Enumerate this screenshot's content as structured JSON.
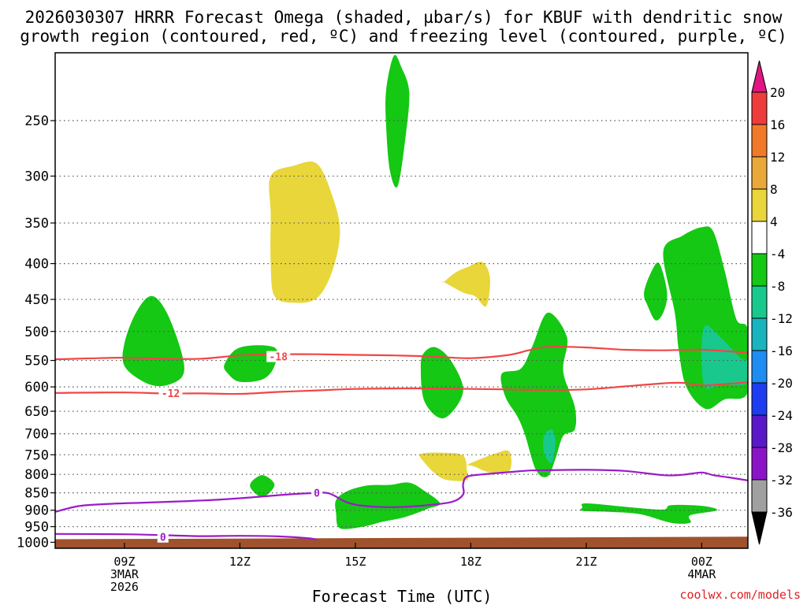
{
  "chart_data": {
    "type": "cross-section",
    "title_line1": "2026030307 HRRR Forecast Omega (shaded, µbar/s) for KBUF with dendritic snow",
    "title_line2": "growth region (contoured, red, ºC) and freezing level (contoured, purple, ºC)",
    "xlabel": "Forecast Time (UTC)",
    "ylabel": "",
    "watermark": "coolwx.com/models",
    "x_axis": {
      "unit": "hours since 2026-03-03 00Z",
      "range": [
        7.2,
        25.2
      ],
      "ticks": [
        {
          "hour": 9,
          "lines": [
            "09Z",
            "3MAR",
            "2026"
          ]
        },
        {
          "hour": 12,
          "lines": [
            "12Z"
          ]
        },
        {
          "hour": 15,
          "lines": [
            "15Z"
          ]
        },
        {
          "hour": 18,
          "lines": [
            "18Z"
          ]
        },
        {
          "hour": 21,
          "lines": [
            "21Z"
          ]
        },
        {
          "hour": 24,
          "lines": [
            "00Z",
            "4MAR"
          ]
        }
      ]
    },
    "y_axis": {
      "unit": "hPa",
      "scale": "log",
      "range_top": 200,
      "range_bottom": 1020,
      "ticks": [
        250,
        300,
        350,
        400,
        450,
        500,
        550,
        600,
        650,
        700,
        750,
        800,
        850,
        900,
        950,
        1000
      ]
    },
    "colorbar": {
      "labels": [
        "20",
        "16",
        "12",
        "8",
        "4",
        "-4",
        "-8",
        "-12",
        "-16",
        "-20",
        "-24",
        "-28",
        "-32",
        "-36"
      ],
      "colors": [
        "#ee3c3c",
        "#f07a2a",
        "#e8a93a",
        "#e8d63a",
        "#ffffff",
        "#14c814",
        "#18c88c",
        "#19b4be",
        "#1e8cf0",
        "#1e3cf0",
        "#5a19c8",
        "#8c14c8",
        "#a0a0a0"
      ],
      "top_arrow_color": "#e01682",
      "bottom_arrow_color": "#000000"
    },
    "omega_regions": [
      {
        "name": "yellow-250-450",
        "color": "#e8d63a",
        "points": [
          [
            12.8,
            300
          ],
          [
            13.4,
            290
          ],
          [
            14.0,
            288
          ],
          [
            14.4,
            320
          ],
          [
            14.6,
            360
          ],
          [
            14.4,
            410
          ],
          [
            14.0,
            448
          ],
          [
            13.4,
            455
          ],
          [
            12.9,
            445
          ],
          [
            12.8,
            400
          ],
          [
            12.8,
            340
          ]
        ]
      },
      {
        "name": "yellow-400-460",
        "color": "#e8d63a",
        "points": [
          [
            17.3,
            425
          ],
          [
            17.6,
            412
          ],
          [
            17.9,
            405
          ],
          [
            18.3,
            398
          ],
          [
            18.5,
            420
          ],
          [
            18.4,
            460
          ],
          [
            18.1,
            445
          ],
          [
            17.8,
            440
          ],
          [
            17.3,
            425
          ]
        ]
      },
      {
        "name": "yellow-750-800",
        "color": "#e8d63a",
        "points": [
          [
            16.7,
            748
          ],
          [
            17.3,
            745
          ],
          [
            17.8,
            752
          ],
          [
            17.9,
            790
          ],
          [
            17.9,
            815
          ],
          [
            17.4,
            815
          ],
          [
            17.1,
            800
          ],
          [
            16.8,
            770
          ]
        ]
      },
      {
        "name": "yellow-760-790",
        "color": "#e8d63a",
        "points": [
          [
            17.9,
            775
          ],
          [
            18.6,
            748
          ],
          [
            19.0,
            742
          ],
          [
            19.0,
            792
          ],
          [
            18.5,
            795
          ],
          [
            18.1,
            780
          ],
          [
            17.9,
            775
          ]
        ]
      },
      {
        "name": "green-200-300",
        "color": "#14c814",
        "points": [
          [
            15.8,
            226
          ],
          [
            16.0,
            202
          ],
          [
            16.2,
            210
          ],
          [
            16.4,
            228
          ],
          [
            16.3,
            265
          ],
          [
            16.1,
            310
          ],
          [
            15.9,
            295
          ],
          [
            15.8,
            255
          ]
        ]
      },
      {
        "name": "green-470-590",
        "color": "#14c814",
        "points": [
          [
            9.0,
            520
          ],
          [
            9.3,
            470
          ],
          [
            9.7,
            445
          ],
          [
            10.1,
            470
          ],
          [
            10.5,
            540
          ],
          [
            10.5,
            580
          ],
          [
            10.0,
            598
          ],
          [
            9.5,
            590
          ],
          [
            9.0,
            560
          ]
        ]
      },
      {
        "name": "green-530-590",
        "color": "#14c814",
        "points": [
          [
            11.6,
            557
          ],
          [
            12.0,
            527
          ],
          [
            12.9,
            527
          ],
          [
            12.9,
            560
          ],
          [
            12.6,
            585
          ],
          [
            12.0,
            590
          ],
          [
            11.7,
            575
          ]
        ]
      },
      {
        "name": "green-535-660",
        "color": "#14c814",
        "points": [
          [
            16.7,
            560
          ],
          [
            16.8,
            535
          ],
          [
            17.1,
            527
          ],
          [
            17.5,
            552
          ],
          [
            17.8,
            610
          ],
          [
            17.3,
            665
          ],
          [
            16.8,
            630
          ]
        ]
      },
      {
        "name": "green-470-810",
        "color": "#14c814",
        "points": [
          [
            18.8,
            575
          ],
          [
            19.3,
            565
          ],
          [
            19.6,
            525
          ],
          [
            20.0,
            470
          ],
          [
            20.5,
            510
          ],
          [
            20.4,
            570
          ],
          [
            20.7,
            640
          ],
          [
            20.7,
            690
          ],
          [
            20.4,
            705
          ],
          [
            20.2,
            760
          ],
          [
            20.0,
            805
          ],
          [
            19.7,
            790
          ],
          [
            19.4,
            700
          ],
          [
            19.2,
            660
          ],
          [
            18.9,
            620
          ]
        ]
      },
      {
        "name": "green-410-480",
        "color": "#14c814",
        "points": [
          [
            22.5,
            440
          ],
          [
            22.7,
            410
          ],
          [
            22.9,
            400
          ],
          [
            23.1,
            440
          ],
          [
            23.0,
            470
          ],
          [
            22.8,
            482
          ],
          [
            22.6,
            460
          ]
        ]
      },
      {
        "name": "green-350-640",
        "color": "#14c814",
        "points": [
          [
            23.5,
            365
          ],
          [
            24.0,
            355
          ],
          [
            24.3,
            360
          ],
          [
            24.6,
            410
          ],
          [
            24.9,
            480
          ],
          [
            25.2,
            498
          ],
          [
            25.2,
            610
          ],
          [
            24.6,
            625
          ],
          [
            24.1,
            645
          ],
          [
            23.6,
            600
          ],
          [
            23.4,
            530
          ],
          [
            23.3,
            470
          ],
          [
            23.0,
            385
          ]
        ]
      },
      {
        "name": "green-810-870",
        "color": "#14c814",
        "points": [
          [
            12.3,
            820
          ],
          [
            12.6,
            802
          ],
          [
            12.9,
            828
          ],
          [
            12.6,
            862
          ],
          [
            12.3,
            840
          ]
        ]
      },
      {
        "name": "green-820-960",
        "color": "#14c814",
        "points": [
          [
            14.5,
            870
          ],
          [
            14.8,
            845
          ],
          [
            15.3,
            830
          ],
          [
            15.9,
            828
          ],
          [
            16.4,
            822
          ],
          [
            16.8,
            845
          ],
          [
            17.2,
            880
          ],
          [
            16.9,
            895
          ],
          [
            16.3,
            920
          ],
          [
            15.7,
            935
          ],
          [
            15.2,
            950
          ],
          [
            14.6,
            955
          ],
          [
            14.5,
            910
          ]
        ]
      },
      {
        "name": "green-880-935",
        "color": "#14c814",
        "points": [
          [
            20.9,
            892
          ],
          [
            21.0,
            880
          ],
          [
            22.2,
            892
          ],
          [
            23.0,
            898
          ],
          [
            23.2,
            885
          ],
          [
            24.0,
            887
          ],
          [
            24.4,
            900
          ],
          [
            23.7,
            915
          ],
          [
            23.7,
            938
          ],
          [
            23.2,
            938
          ],
          [
            22.4,
            912
          ],
          [
            21.6,
            905
          ],
          [
            20.9,
            902
          ]
        ]
      },
      {
        "name": "teal-690-760",
        "color": "#18c88c",
        "points": [
          [
            19.9,
            705
          ],
          [
            20.1,
            690
          ],
          [
            20.2,
            720
          ],
          [
            20.1,
            770
          ],
          [
            19.9,
            745
          ]
        ]
      },
      {
        "name": "teal-490-610",
        "color": "#18c88c",
        "points": [
          [
            24.0,
            520
          ],
          [
            24.1,
            490
          ],
          [
            24.5,
            510
          ],
          [
            25.0,
            545
          ],
          [
            25.2,
            552
          ],
          [
            25.2,
            592
          ],
          [
            24.5,
            596
          ],
          [
            24.1,
            602
          ],
          [
            24.0,
            560
          ]
        ]
      }
    ],
    "contours": [
      {
        "name": "dgz-minus18",
        "label": "-18",
        "color": "#f04646",
        "label_at": [
          13.0,
          543
        ],
        "points": [
          [
            7.2,
            548
          ],
          [
            9.0,
            545
          ],
          [
            10.0,
            547
          ],
          [
            11.0,
            547
          ],
          [
            12.0,
            541
          ],
          [
            13.0,
            539
          ],
          [
            14.0,
            539
          ],
          [
            15.0,
            540
          ],
          [
            16.0,
            541
          ],
          [
            17.0,
            543
          ],
          [
            18.0,
            546
          ],
          [
            19.0,
            540
          ],
          [
            19.5,
            532
          ],
          [
            20.0,
            526
          ],
          [
            21.0,
            527
          ],
          [
            22.0,
            531
          ],
          [
            23.0,
            532
          ],
          [
            24.0,
            531
          ],
          [
            25.2,
            536
          ]
        ]
      },
      {
        "name": "dgz-minus12",
        "label": "-12",
        "color": "#f04646",
        "label_at": [
          10.2,
          612
        ],
        "points": [
          [
            7.2,
            612
          ],
          [
            9.0,
            611
          ],
          [
            10.0,
            613
          ],
          [
            11.0,
            613
          ],
          [
            12.0,
            614
          ],
          [
            13.0,
            610
          ],
          [
            14.0,
            607
          ],
          [
            15.0,
            604
          ],
          [
            16.0,
            603
          ],
          [
            17.0,
            603
          ],
          [
            18.0,
            604
          ],
          [
            19.0,
            605
          ],
          [
            20.0,
            606
          ],
          [
            21.0,
            605
          ],
          [
            22.0,
            599
          ],
          [
            23.0,
            593
          ],
          [
            23.5,
            592
          ],
          [
            24.0,
            597
          ],
          [
            24.5,
            595
          ],
          [
            25.2,
            591
          ]
        ]
      },
      {
        "name": "freezing-upper",
        "label": "0",
        "color": "#9b1bc8",
        "label_at": [
          14.0,
          850
        ],
        "points": [
          [
            7.2,
            905
          ],
          [
            7.8,
            888
          ],
          [
            8.5,
            882
          ],
          [
            9.5,
            878
          ],
          [
            10.5,
            874
          ],
          [
            11.5,
            869
          ],
          [
            12.5,
            861
          ],
          [
            13.2,
            855
          ],
          [
            13.8,
            851
          ],
          [
            14.3,
            851
          ],
          [
            14.8,
            878
          ],
          [
            15.3,
            888
          ],
          [
            16.0,
            891
          ],
          [
            16.8,
            886
          ],
          [
            17.5,
            876
          ],
          [
            17.8,
            855
          ],
          [
            17.8,
            827
          ],
          [
            17.9,
            806
          ],
          [
            18.3,
            800
          ],
          [
            19.0,
            794
          ],
          [
            19.5,
            790
          ],
          [
            20.0,
            789
          ],
          [
            21.0,
            788
          ],
          [
            22.0,
            791
          ],
          [
            23.0,
            802
          ],
          [
            23.5,
            801
          ],
          [
            24.0,
            795
          ],
          [
            24.3,
            802
          ],
          [
            24.7,
            808
          ],
          [
            25.2,
            816
          ]
        ]
      },
      {
        "name": "freezing-lower",
        "label": "0",
        "color": "#9b1bc8",
        "label_at": [
          10.0,
          983
        ],
        "points": [
          [
            7.2,
            973
          ],
          [
            9.0,
            974
          ],
          [
            10.0,
            977
          ],
          [
            11.0,
            980
          ],
          [
            12.0,
            979
          ],
          [
            13.0,
            981
          ],
          [
            13.8,
            987
          ],
          [
            14.0,
            992
          ]
        ]
      }
    ],
    "ground": {
      "color": "#a0522d",
      "pressure_left": 990,
      "pressure_right": 982
    }
  }
}
